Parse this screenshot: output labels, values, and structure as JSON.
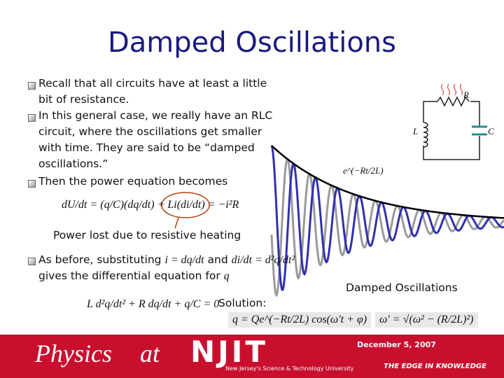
{
  "title": "Damped Oscillations",
  "bullets": [
    {
      "lines": [
        "Recall that all circuits have at least a little",
        "bit of resistance."
      ]
    },
    {
      "lines": [
        "In this general case, we really have an RLC",
        "circuit, where the oscillations get smaller",
        "with time.  They are said to be “damped",
        "oscillations.”"
      ]
    },
    {
      "lines": [
        "Then the power equation becomes"
      ]
    },
    {
      "lines": [
        "As before, substituting",
        "gives the differential equation for"
      ]
    }
  ],
  "power_equation": "dU/dt = (q/C)(dq/dt) + Li(di/dt) = −i²R",
  "power_caption": "Power lost due to resistive heating",
  "substitution": {
    "first": "i = dq/dt",
    "and": "and",
    "second": "di/dt = d²q/dt²",
    "variable": "q"
  },
  "differential_equation": "L d²q/dt² + R dq/dt + q/C = 0",
  "solution_label": "Solution:",
  "solution": "q = Qe^(−Rt/2L) cos(ω′t + φ)",
  "omega": "ω′ = √(ω² − (R/2L)²)",
  "envelope_label": "e^(−Rt/2L)",
  "circuit": {
    "R": "R",
    "L": "L",
    "C": "C"
  },
  "figure_caption": "Damped Oscillations",
  "footer": {
    "date": "December 5, 2007",
    "physics": "Physics",
    "at": "at",
    "njit": "NJIT",
    "university": "New Jersey's Science & Technology University",
    "tagline": "THE EDGE IN KNOWLEDGE"
  }
}
